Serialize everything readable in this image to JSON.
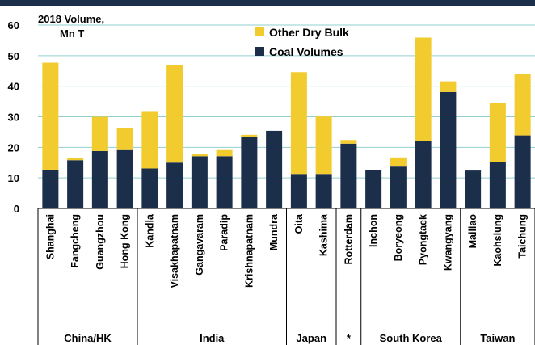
{
  "chart_data": {
    "type": "bar",
    "stacked": true,
    "unit_label_line1": "2018 Volume,",
    "unit_label_line2": "Mn T",
    "ylim": [
      0,
      60
    ],
    "yticks": [
      0,
      10,
      20,
      30,
      40,
      50,
      60
    ],
    "legend_position": "top-center",
    "series": [
      {
        "name": "Other Dry Bulk",
        "color": "#f2cb2e",
        "values": [
          35,
          0.8,
          11.2,
          7.3,
          18.5,
          32,
          0.8,
          2,
          0.6,
          0,
          33.3,
          18.8,
          1.2,
          0,
          3,
          33.8,
          3.5,
          0,
          19.2,
          20
        ]
      },
      {
        "name": "Coal Volumes",
        "color": "#1b2f4b",
        "values": [
          12.7,
          15.8,
          18.8,
          19.1,
          13.1,
          15,
          17.1,
          17.1,
          23.5,
          25.4,
          11.3,
          11.3,
          21.2,
          12.5,
          13.7,
          22.1,
          38.1,
          12.4,
          15.3,
          23.9
        ]
      }
    ],
    "categories": [
      "Shanghai",
      "Fangcheng",
      "Guangzhou",
      "Hong Kong",
      "Kandla",
      "Visakhapatnam",
      "Gangavaram",
      "Paradip",
      "Krishnapatnam",
      "Mundra",
      "Oita",
      "Kashima",
      "Rotterdam",
      "Inchon",
      "Boryeong",
      "Pyongtaek",
      "Kwangyang",
      "Mailiao",
      "Kaohsiung",
      "Taichung"
    ],
    "groups": [
      {
        "label": "China/HK",
        "count": 4
      },
      {
        "label": "India",
        "count": 6
      },
      {
        "label": "Japan",
        "count": 2
      },
      {
        "label": "*",
        "count": 1
      },
      {
        "label": "South Korea",
        "count": 4
      },
      {
        "label": "Taiwan",
        "count": 3
      }
    ]
  }
}
